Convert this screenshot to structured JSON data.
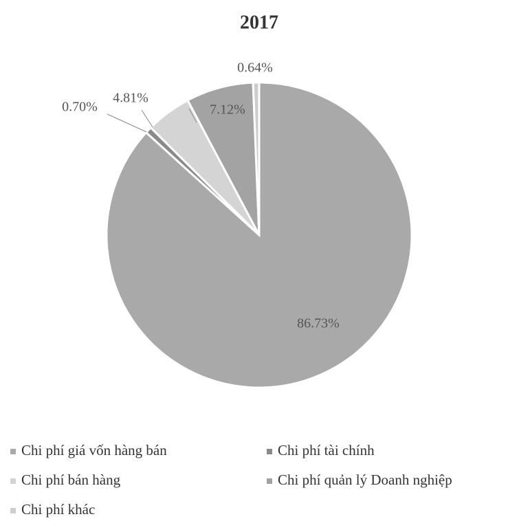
{
  "chart_data": {
    "type": "pie",
    "title": "2017",
    "categories": [
      "Chi phí giá vốn hàng bán",
      "Chi phí tài chính",
      "Chi phí bán hàng",
      "Chi phí quản lý Doanh nghiệp",
      "Chi phí khác"
    ],
    "values": [
      86.73,
      0.7,
      4.81,
      7.12,
      0.64
    ],
    "value_labels": [
      "86.73%",
      "0.70%",
      "4.81%",
      "7.12%",
      "0.64%"
    ],
    "colors": [
      "#a9a9a9",
      "#8a8a8a",
      "#d4d4d4",
      "#a3a3a3",
      "#cdcdcd"
    ],
    "legend": "bottom"
  }
}
